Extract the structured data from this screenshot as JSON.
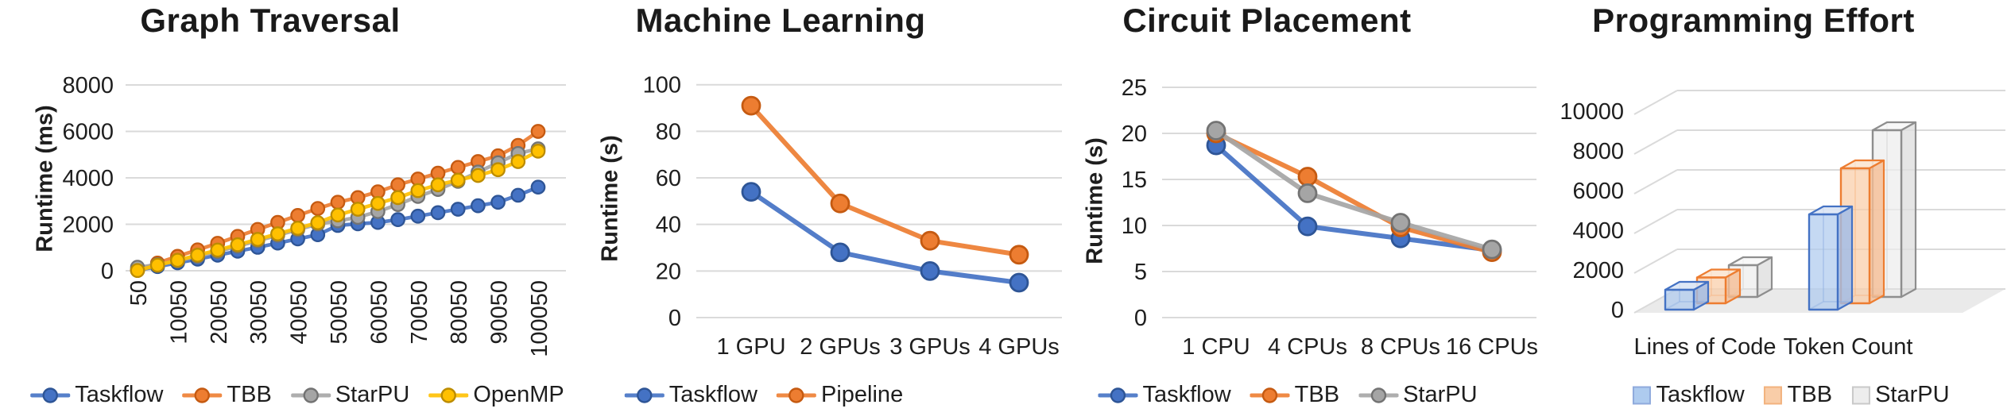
{
  "figure": {
    "background": "#ffffff",
    "panel_titles": [
      "Graph Traversal",
      "Machine Learning",
      "Circuit Placement",
      "Programming Effort"
    ]
  },
  "colors": {
    "taskflow": {
      "main": "#4472C4",
      "dark": "#2E5596",
      "edge": "#4472C4",
      "light": "#AECBEF",
      "lightStroke": "#8FAADC",
      "top": "#DCE6F5",
      "side": "#9FBCE8"
    },
    "tbb": {
      "main": "#ED7D31",
      "dark": "#C55A11",
      "edge": "#ED7D31",
      "light": "#F9CDA8",
      "lightStroke": "#F2B27E",
      "top": "#FBE5D2",
      "side": "#F5BD93"
    },
    "starpu": {
      "main": "#A5A5A5",
      "dark": "#737373",
      "edge": "#8E8E8E",
      "light": "#EDEDED",
      "lightStroke": "#C9C9C9",
      "top": "#F7F7F7",
      "side": "#DFDFDF"
    },
    "openmp": {
      "main": "#FFC000",
      "dark": "#BC8C00",
      "edge": "#BC8C00",
      "light": "#FFE399",
      "lightStroke": "#E0B63E",
      "top": "#FFF0C2",
      "side": "#F5D36B"
    },
    "grid": "#DADADA",
    "floor": "#EAEAEA",
    "text": "#1E1E1E"
  },
  "chart_data": [
    {
      "type": "line",
      "title": "Graph Traversal",
      "xlabel": "",
      "ylabel": "Runtime (ms)",
      "ylim": [
        0,
        8000
      ],
      "yticks": [
        0,
        2000,
        4000,
        6000,
        8000
      ],
      "grid": true,
      "legend_position": "bottom",
      "x": [
        50,
        5050,
        10050,
        15050,
        20050,
        25050,
        30050,
        35050,
        40050,
        45050,
        50050,
        55050,
        60050,
        65050,
        70050,
        75050,
        80050,
        85050,
        90050,
        95050,
        100050
      ],
      "xtick_labels": [
        "50",
        "10050",
        "20050",
        "30050",
        "40050",
        "50050",
        "60050",
        "70050",
        "80050",
        "90050",
        "100050"
      ],
      "series": [
        {
          "name": "Taskflow",
          "color": "taskflow",
          "values": [
            20,
            180,
            340,
            500,
            670,
            840,
            1010,
            1190,
            1370,
            1550,
            1950,
            2020,
            2080,
            2200,
            2350,
            2500,
            2650,
            2800,
            2950,
            3250,
            3600
          ]
        },
        {
          "name": "TBB",
          "color": "tbb",
          "values": [
            30,
            330,
            620,
            900,
            1180,
            1480,
            1780,
            2080,
            2380,
            2680,
            2950,
            3150,
            3400,
            3700,
            3950,
            4200,
            4450,
            4700,
            4950,
            5400,
            6000
          ]
        },
        {
          "name": "StarPU",
          "color": "starpu",
          "values": [
            150,
            260,
            430,
            620,
            830,
            1060,
            1290,
            1530,
            1770,
            2010,
            2150,
            2300,
            2550,
            2850,
            3200,
            3500,
            3850,
            4250,
            4650,
            5050,
            5250
          ]
        },
        {
          "name": "OpenMP",
          "color": "openmp",
          "values": [
            10,
            240,
            450,
            670,
            890,
            1120,
            1350,
            1590,
            1830,
            2070,
            2400,
            2650,
            2900,
            3150,
            3450,
            3700,
            3900,
            4100,
            4350,
            4700,
            5150
          ]
        }
      ]
    },
    {
      "type": "line",
      "title": "Machine Learning",
      "xlabel": "",
      "ylabel": "Runtime (s)",
      "ylim": [
        0,
        100
      ],
      "yticks": [
        0,
        20,
        40,
        60,
        80,
        100
      ],
      "grid": true,
      "legend_position": "bottom",
      "categories": [
        "1 GPU",
        "2 GPUs",
        "3 GPUs",
        "4 GPUs"
      ],
      "series": [
        {
          "name": "Taskflow",
          "color": "taskflow",
          "values": [
            54,
            28,
            20,
            15
          ]
        },
        {
          "name": "Pipeline",
          "color": "tbb",
          "values": [
            91,
            49,
            33,
            27
          ]
        }
      ]
    },
    {
      "type": "line",
      "title": "Circuit Placement",
      "xlabel": "",
      "ylabel": "Runtime (s)",
      "ylim": [
        0,
        25
      ],
      "yticks": [
        0,
        5,
        10,
        15,
        20,
        25
      ],
      "grid": true,
      "legend_position": "bottom",
      "categories": [
        "1 CPU",
        "4 CPUs",
        "8 CPUs",
        "16 CPUs"
      ],
      "series": [
        {
          "name": "Taskflow",
          "color": "taskflow",
          "values": [
            18.7,
            9.9,
            8.6,
            7.3
          ]
        },
        {
          "name": "TBB",
          "color": "tbb",
          "values": [
            20.0,
            15.3,
            9.8,
            7.1
          ]
        },
        {
          "name": "StarPU",
          "color": "starpu",
          "values": [
            20.3,
            13.5,
            10.3,
            7.4
          ]
        }
      ]
    },
    {
      "type": "bar",
      "title": "Programming Effort",
      "xlabel": "",
      "ylabel": "",
      "style": "3d-box",
      "ylim": [
        0,
        10000
      ],
      "yticks": [
        0,
        2000,
        4000,
        6000,
        8000,
        10000
      ],
      "grid": true,
      "legend_position": "bottom",
      "categories": [
        "Lines of Code",
        "Token Count"
      ],
      "series": [
        {
          "name": "Taskflow",
          "color": "taskflow",
          "values": [
            1000,
            4800
          ]
        },
        {
          "name": "TBB",
          "color": "tbb",
          "values": [
            1300,
            6800
          ]
        },
        {
          "name": "StarPU",
          "color": "starpu",
          "values": [
            1600,
            8400
          ]
        }
      ]
    }
  ]
}
